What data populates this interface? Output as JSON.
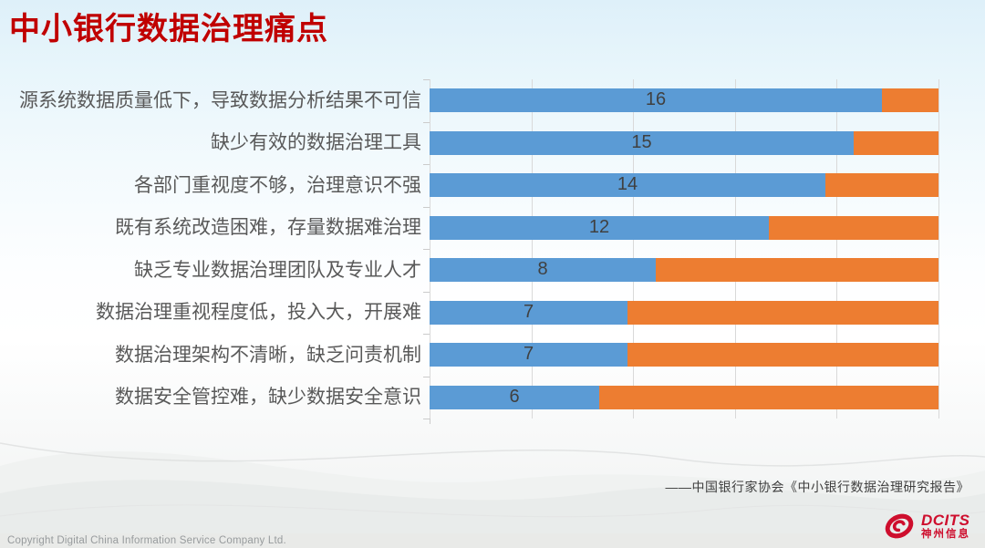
{
  "slide": {
    "title": "中小银行数据治理痛点",
    "source": "——中国银行家协会《中小银行数据治理研究报告》",
    "copyright": "Copyright  Digital China Information Service Company Ltd.",
    "logo_en": "DCITS",
    "logo_cn": "神州信息"
  },
  "colors": {
    "title": "#c00000",
    "bar_blue": "#5B9BD5",
    "bar_orange": "#ED7D31",
    "gridline": "#d9d9d9",
    "category_label": "#595959",
    "value_label": "#404040",
    "logo_red": "#ce0e2d"
  },
  "chart_data": {
    "type": "bar",
    "orientation": "horizontal",
    "stacked": true,
    "title": "中小银行数据治理痛点",
    "xlabel": "",
    "ylabel": "",
    "categories": [
      "源系统数据质量低下，导致数据分析结果不可信",
      "缺少有效的数据治理工具",
      "各部门重视度不够，治理意识不强",
      "既有系统改造困难，存量数据难治理",
      "缺乏专业数据治理团队及专业人才",
      "数据治理重视程度低，投入大，开展难",
      "数据治理架构不清晰，缺乏问责机制",
      "数据安全管控难，缺少数据安全意识"
    ],
    "series": [
      {
        "name": "blue-segment",
        "color": "#5B9BD5",
        "values": [
          16,
          15,
          14,
          12,
          8,
          7,
          7,
          6
        ]
      },
      {
        "name": "orange-segment",
        "color": "#ED7D31",
        "values": [
          2,
          3,
          4,
          6,
          10,
          11,
          11,
          12
        ]
      }
    ],
    "bar_total": 18,
    "xlim": [
      0,
      18
    ],
    "gridline_count": 6,
    "grid": true,
    "legend_position": "none",
    "value_labels_series": 0
  }
}
